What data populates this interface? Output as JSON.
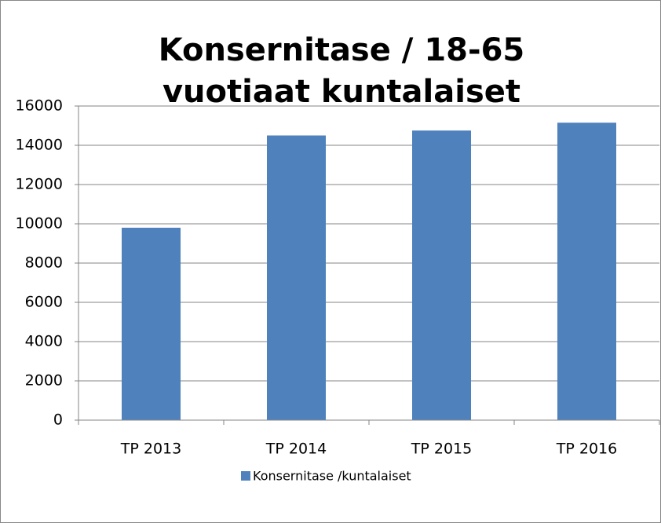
{
  "chart_data": {
    "type": "bar",
    "title": "Konsernitase / 18-65 vuotiaat kuntalaiset",
    "categories": [
      "TP 2013",
      "TP 2014",
      "TP 2015",
      "TP 2016"
    ],
    "series": [
      {
        "name": "Konsernitase /kuntalaiset",
        "color": "#4f81bd",
        "values": [
          9800,
          14500,
          14750,
          15150
        ]
      }
    ],
    "ylim": [
      0,
      16000
    ],
    "yticks": [
      0,
      2000,
      4000,
      6000,
      8000,
      10000,
      12000,
      14000,
      16000
    ],
    "grid": true,
    "legend": "bottom"
  }
}
